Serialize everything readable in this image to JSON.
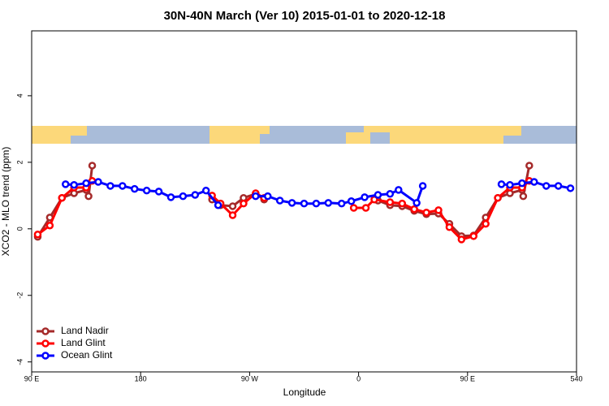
{
  "chart_data": {
    "type": "line",
    "title": "30N-40N March (Ver 10)   2015-01-01 to 2020-12-18",
    "x_label": "Longitude",
    "y_label": "XCO2 - MLO trend (ppm)",
    "xlim": [
      90,
      540
    ],
    "ylim": [
      -4.3,
      5.95
    ],
    "xticks": [
      {
        "value": 90,
        "label": "90 E"
      },
      180,
      {
        "value": 270,
        "label": "90 W"
      },
      {
        "value": 360,
        "label": "0"
      },
      {
        "value": 450,
        "label": "90 E"
      },
      540
    ],
    "yticks": [
      -4,
      -2,
      0,
      2,
      4
    ],
    "legend": "bottom-left",
    "series": [
      {
        "name": "Land Nadir",
        "color": "#a52a2a",
        "x": [
          95,
          105,
          115,
          125,
          135,
          137,
          140,
          null,
          239,
          246,
          256,
          265,
          275,
          282,
          null,
          376,
          386,
          396,
          406,
          416,
          426,
          435,
          445,
          455,
          465,
          475,
          485,
          495,
          496,
          501
        ],
        "values": [
          -0.24,
          0.34,
          0.93,
          1.07,
          1.17,
          0.98,
          1.9,
          null,
          0.88,
          0.71,
          0.68,
          0.93,
          1.05,
          0.88,
          null,
          0.85,
          0.71,
          0.68,
          0.54,
          0.44,
          0.46,
          0.15,
          -0.22,
          -0.2,
          0.34,
          0.93,
          1.07,
          1.17,
          0.98,
          1.9
        ]
      },
      {
        "name": "Land Glint",
        "color": "#ff0000",
        "x": [
          95,
          105,
          115,
          125,
          135,
          140,
          null,
          239,
          246,
          256,
          265,
          275,
          282,
          null,
          356,
          366,
          373,
          386,
          396,
          406,
          416,
          426,
          435,
          445,
          455,
          465,
          475,
          485,
          495,
          501
        ],
        "values": [
          -0.17,
          0.1,
          0.93,
          1.24,
          1.24,
          1.44,
          null,
          1.0,
          0.76,
          0.41,
          0.76,
          1.07,
          0.93,
          null,
          0.63,
          0.63,
          0.88,
          0.8,
          0.76,
          0.59,
          0.49,
          0.56,
          0.05,
          -0.32,
          -0.22,
          0.15,
          0.93,
          1.24,
          1.24,
          1.44
        ]
      },
      {
        "name": "Ocean Glint",
        "color": "#0000ff",
        "x": [
          118,
          125,
          135,
          145,
          155,
          165,
          175,
          185,
          195,
          205,
          215,
          225,
          234,
          244,
          null,
          275,
          285,
          295,
          305,
          315,
          325,
          335,
          346,
          354,
          365,
          376,
          386,
          393,
          408,
          413,
          null,
          478,
          485,
          495,
          505,
          515,
          525,
          535
        ],
        "values": [
          1.34,
          1.32,
          1.37,
          1.41,
          1.29,
          1.29,
          1.2,
          1.15,
          1.12,
          0.95,
          0.98,
          1.02,
          1.15,
          0.71,
          null,
          0.98,
          0.98,
          0.85,
          0.78,
          0.76,
          0.76,
          0.78,
          0.76,
          0.83,
          0.95,
          1.02,
          1.05,
          1.17,
          0.78,
          1.29,
          null,
          1.34,
          1.32,
          1.37,
          1.41,
          1.29,
          1.29,
          1.22
        ]
      }
    ]
  }
}
